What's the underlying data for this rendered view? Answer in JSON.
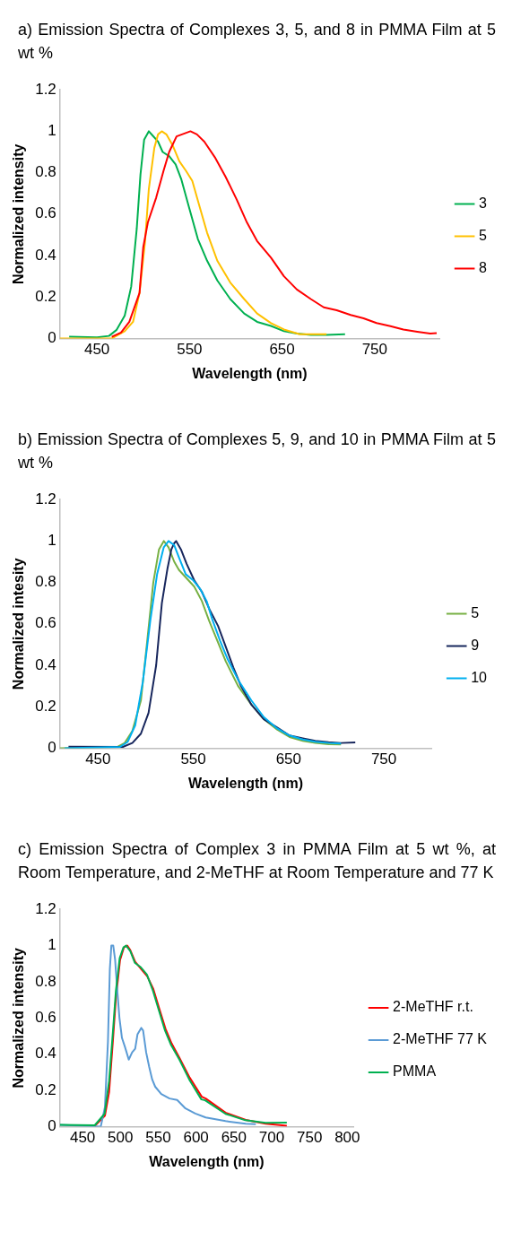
{
  "chart_data": [
    {
      "type": "line",
      "title": "a) Emission Spectra of Complexes 3, 5, and 8 in PMMA Film at 5 wt %",
      "xlabel": "Wavelength (nm)",
      "ylabel": "Normalized intensity",
      "xlim": [
        410,
        820
      ],
      "xticks": [
        450,
        550,
        650,
        750
      ],
      "ylim": [
        0,
        1.2
      ],
      "yticks": [
        0,
        0.2,
        0.4,
        0.6,
        0.8,
        1,
        1.2
      ],
      "legend": "right",
      "series": [
        {
          "name": "3",
          "color": "#00b050",
          "x": [
            420,
            450,
            463,
            471,
            480,
            487,
            493,
            497,
            501,
            506,
            510,
            516,
            521,
            528,
            535,
            541,
            549,
            559,
            569,
            580,
            594,
            609,
            623,
            638,
            652,
            666,
            681,
            698,
            718
          ],
          "values": [
            0.008,
            0.005,
            0.012,
            0.04,
            0.11,
            0.25,
            0.53,
            0.79,
            0.96,
            1,
            0.98,
            0.95,
            0.9,
            0.88,
            0.84,
            0.77,
            0.64,
            0.48,
            0.375,
            0.28,
            0.19,
            0.12,
            0.08,
            0.06,
            0.035,
            0.023,
            0.017,
            0.017,
            0.02
          ]
        },
        {
          "name": "5",
          "color": "#ffc000",
          "x": [
            410,
            466,
            480,
            489,
            496,
            502,
            506,
            512,
            516,
            520,
            525,
            532,
            539,
            546,
            553,
            560,
            569,
            580,
            594,
            609,
            623,
            638,
            652,
            669,
            698
          ],
          "values": [
            0,
            0,
            0.035,
            0.08,
            0.22,
            0.47,
            0.72,
            0.92,
            0.985,
            1,
            0.985,
            0.93,
            0.855,
            0.81,
            0.76,
            0.65,
            0.51,
            0.375,
            0.27,
            0.19,
            0.12,
            0.074,
            0.043,
            0.02,
            0.02
          ]
        },
        {
          "name": "8",
          "color": "#ff0000",
          "x": [
            466,
            476,
            485,
            496,
            500,
            505,
            514,
            522,
            528,
            536,
            551,
            558,
            566,
            578,
            589,
            601,
            612,
            623,
            638,
            652,
            666,
            681,
            695,
            709,
            724,
            738,
            752,
            767,
            781,
            796,
            810,
            817
          ],
          "values": [
            0.008,
            0.028,
            0.08,
            0.22,
            0.44,
            0.56,
            0.68,
            0.81,
            0.9,
            0.975,
            1,
            0.985,
            0.95,
            0.87,
            0.78,
            0.67,
            0.56,
            0.47,
            0.39,
            0.3,
            0.236,
            0.19,
            0.15,
            0.136,
            0.113,
            0.097,
            0.074,
            0.059,
            0.043,
            0.032,
            0.023,
            0.026
          ]
        }
      ]
    },
    {
      "type": "line",
      "title": "b) Emission Spectra of Complexes 5, 9, and 10 in PMMA Film at 5 wt %",
      "xlabel": "Wavelength (nm)",
      "ylabel": "Normalized intesity",
      "xlim": [
        410,
        800
      ],
      "xticks": [
        450,
        550,
        650,
        750
      ],
      "ylim": [
        0,
        1.2
      ],
      "yticks": [
        0,
        0.2,
        0.4,
        0.6,
        0.8,
        1,
        1.2
      ],
      "legend": "right",
      "series": [
        {
          "name": "5",
          "color": "#77b043",
          "x": [
            410,
            470,
            478,
            486,
            495,
            501,
            508,
            514,
            519,
            524,
            530,
            535,
            543,
            551,
            559,
            567,
            576,
            584,
            597,
            611,
            624,
            638,
            651,
            665,
            678,
            692,
            705
          ],
          "values": [
            0,
            0.006,
            0.025,
            0.083,
            0.23,
            0.49,
            0.8,
            0.96,
            1,
            0.97,
            0.9,
            0.86,
            0.82,
            0.78,
            0.71,
            0.61,
            0.51,
            0.42,
            0.3,
            0.21,
            0.14,
            0.09,
            0.054,
            0.035,
            0.025,
            0.019,
            0.018
          ]
        },
        {
          "name": "9",
          "color": "#17265c",
          "x": [
            419,
            476,
            486,
            495,
            503,
            511,
            517,
            523,
            527,
            530,
            532,
            537,
            543,
            551,
            559,
            567,
            576,
            584,
            592,
            600,
            611,
            624,
            638,
            651,
            665,
            678,
            692,
            705,
            720
          ],
          "values": [
            0.007,
            0.006,
            0.025,
            0.07,
            0.17,
            0.4,
            0.7,
            0.87,
            0.96,
            0.99,
            1,
            0.96,
            0.89,
            0.81,
            0.755,
            0.67,
            0.59,
            0.49,
            0.39,
            0.3,
            0.21,
            0.14,
            0.1,
            0.061,
            0.047,
            0.035,
            0.029,
            0.025,
            0.028
          ]
        },
        {
          "name": "10",
          "color": "#00b0f0",
          "x": [
            415,
            473,
            481,
            489,
            497,
            505,
            512,
            519,
            524,
            530,
            535,
            542,
            550,
            557,
            564,
            570,
            578,
            586,
            597,
            611,
            624,
            638,
            651,
            665,
            678,
            692,
            705
          ],
          "values": [
            0,
            0.006,
            0.03,
            0.11,
            0.32,
            0.62,
            0.84,
            0.97,
            1,
            0.98,
            0.92,
            0.84,
            0.81,
            0.77,
            0.71,
            0.62,
            0.52,
            0.43,
            0.33,
            0.23,
            0.15,
            0.095,
            0.061,
            0.042,
            0.031,
            0.025,
            0.022
          ]
        }
      ]
    },
    {
      "type": "line",
      "title": "c) Emission Spectra of Complex 3 in PMMA Film at 5 wt %, at Room Temperature, and 2-MeTHF at Room Temperature and 77 K",
      "xlabel": "Wavelength (nm)",
      "ylabel": "Normalized intensity",
      "xlim": [
        420,
        808
      ],
      "xticks": [
        450,
        500,
        550,
        600,
        650,
        700,
        750,
        800
      ],
      "ylim": [
        0,
        1.2
      ],
      "yticks": [
        0,
        0.2,
        0.4,
        0.6,
        0.8,
        1,
        1.2
      ],
      "legend": "right",
      "series": [
        {
          "name": "2-MeTHF r.t.",
          "color": "#ff0000",
          "x": [
            466,
            479.5,
            485,
            490,
            494,
            499.5,
            504.6,
            509,
            513,
            519.5,
            527.5,
            535.5,
            543.5,
            551.5,
            559.6,
            567.6,
            578,
            591.6,
            607.5,
            612.7,
            639,
            665.7,
            692,
            720
          ],
          "values": [
            0.003,
            0.06,
            0.19,
            0.47,
            0.71,
            0.92,
            0.99,
            1,
            0.975,
            0.91,
            0.87,
            0.83,
            0.76,
            0.65,
            0.54,
            0.46,
            0.38,
            0.27,
            0.165,
            0.155,
            0.077,
            0.037,
            0.016,
            0.005
          ]
        },
        {
          "name": "2-MeTHF 77 K",
          "color": "#5b9bd5",
          "x": [
            420,
            474,
            479.5,
            483.5,
            486,
            488,
            490.5,
            493,
            495.7,
            498.7,
            502,
            506,
            511,
            515.5,
            519.5,
            522.6,
            527.5,
            530,
            534,
            538,
            542,
            546,
            554,
            565,
            575,
            586,
            599,
            612.7,
            639,
            665.7,
            679
          ],
          "values": [
            0.01,
            0,
            0.107,
            0.47,
            0.87,
            1,
            1,
            0.92,
            0.76,
            0.6,
            0.49,
            0.44,
            0.37,
            0.41,
            0.43,
            0.51,
            0.545,
            0.53,
            0.41,
            0.33,
            0.26,
            0.22,
            0.18,
            0.155,
            0.147,
            0.1,
            0.072,
            0.05,
            0.03,
            0.016,
            0.013
          ]
        },
        {
          "name": "PMMA",
          "color": "#00b050",
          "x": [
            420,
            466,
            479,
            485,
            490,
            494,
            499,
            504,
            507.5,
            513,
            519,
            527,
            535,
            543,
            551,
            559,
            567,
            578,
            591,
            607,
            612,
            639,
            665,
            692,
            720
          ],
          "values": [
            0.01,
            0.007,
            0.07,
            0.25,
            0.52,
            0.75,
            0.93,
            0.99,
            1,
            0.97,
            0.905,
            0.88,
            0.84,
            0.75,
            0.64,
            0.53,
            0.45,
            0.37,
            0.26,
            0.15,
            0.145,
            0.07,
            0.035,
            0.02,
            0.022
          ]
        }
      ]
    }
  ]
}
